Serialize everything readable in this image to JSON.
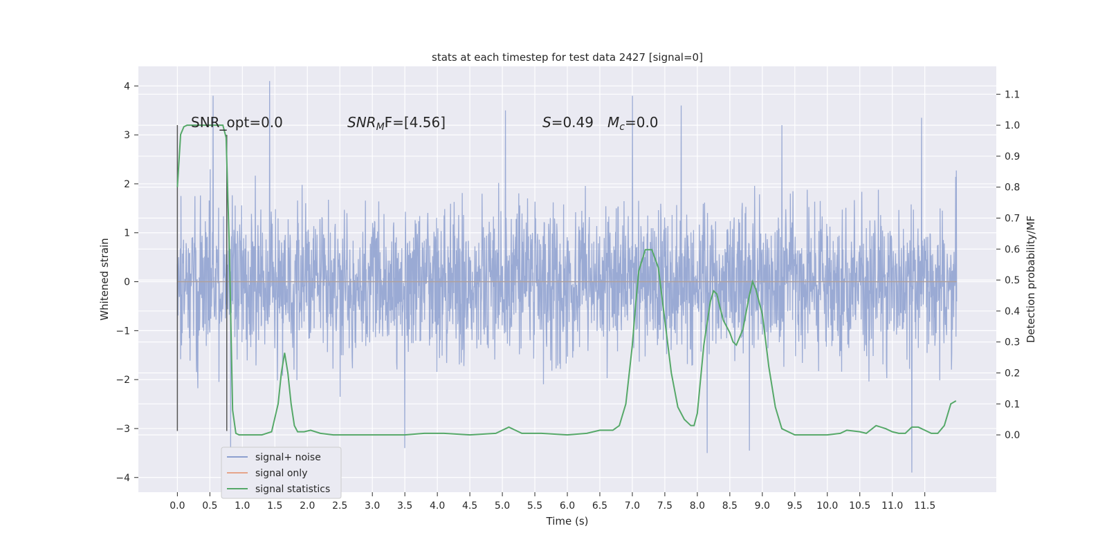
{
  "chart_data": {
    "type": "line",
    "title": "stats at each timestep for test data 2427 [signal=0]",
    "xlabel": "Time (s)",
    "ylabel": "Whitened strain",
    "y2label": "Detection probability/MF",
    "xlim": [
      -0.6,
      12.6
    ],
    "ylim": [
      -4.3,
      4.4
    ],
    "y2lim": [
      -0.185,
      1.19
    ],
    "x_ticks": [
      "0.0",
      "0.5",
      "1.0",
      "1.5",
      "2.0",
      "2.5",
      "3.0",
      "3.5",
      "4.0",
      "4.5",
      "5.0",
      "5.5",
      "6.0",
      "6.5",
      "7.0",
      "7.5",
      "8.0",
      "8.5",
      "9.0",
      "9.5",
      "10.0",
      "10.5",
      "11.0",
      "11.5"
    ],
    "y_ticks": [
      "−4",
      "−3",
      "−2",
      "−1",
      "0",
      "1",
      "2",
      "3",
      "4"
    ],
    "y2_ticks": [
      "0.0",
      "0.1",
      "0.2",
      "0.3",
      "0.4",
      "0.5",
      "0.6",
      "0.7",
      "0.8",
      "0.9",
      "1.0",
      "1.1"
    ],
    "grid": true,
    "legend_position": "bottom-left",
    "legend": [
      {
        "label": "signal+ noise",
        "color": "#8c9fcf"
      },
      {
        "label": "signal only",
        "color": "#e6a48a"
      },
      {
        "label": "signal statistics",
        "color": "#55a868"
      }
    ],
    "annotations": {
      "snr_opt": "SNR_opt=0.0",
      "snr_mf_sym": "SNR",
      "snr_mf_sub": "M",
      "snr_mf_rest": "F=[4.56]",
      "s_sym": "S",
      "s_val": "=0.49",
      "mc_sym": "M",
      "mc_sub": "c",
      "mc_val": "=0.0"
    },
    "noise_series": {
      "name": "signal+ noise",
      "x_range": [
        0.0,
        11.99
      ],
      "band": [
        -1.8,
        1.9
      ],
      "spikes": [
        [
          0.55,
          3.8
        ],
        [
          1.42,
          4.1
        ],
        [
          3.5,
          -3.4
        ],
        [
          5.05,
          3.5
        ],
        [
          7.0,
          3.8
        ],
        [
          7.75,
          3.6
        ],
        [
          8.15,
          -3.5
        ],
        [
          8.8,
          -3.45
        ],
        [
          9.3,
          3.2
        ],
        [
          11.3,
          -3.9
        ],
        [
          11.45,
          3.35
        ],
        [
          0.82,
          -3.4
        ]
      ]
    },
    "signal_only": {
      "name": "signal only",
      "value": 0.0
    },
    "window_markers": [
      {
        "x": 0.0,
        "y": [
          -3.05,
          3.2
        ]
      },
      {
        "x": 0.76,
        "y": [
          -3.05,
          3.0
        ]
      }
    ],
    "stats_series": {
      "name": "signal statistics",
      "x": [
        0.0,
        0.05,
        0.1,
        0.15,
        0.25,
        0.4,
        0.6,
        0.7,
        0.75,
        0.8,
        0.85,
        0.9,
        0.95,
        1.0,
        1.1,
        1.3,
        1.45,
        1.55,
        1.6,
        1.65,
        1.7,
        1.75,
        1.8,
        1.85,
        1.95,
        2.05,
        2.2,
        2.4,
        2.7,
        3.0,
        3.5,
        3.8,
        4.1,
        4.5,
        4.9,
        5.0,
        5.1,
        5.2,
        5.3,
        5.6,
        6.0,
        6.3,
        6.5,
        6.7,
        6.8,
        6.9,
        7.0,
        7.05,
        7.1,
        7.2,
        7.3,
        7.4,
        7.5,
        7.6,
        7.7,
        7.8,
        7.9,
        7.95,
        8.0,
        8.1,
        8.2,
        8.25,
        8.3,
        8.35,
        8.4,
        8.5,
        8.55,
        8.6,
        8.7,
        8.8,
        8.85,
        8.9,
        9.0,
        9.1,
        9.2,
        9.3,
        9.5,
        9.8,
        10.0,
        10.2,
        10.3,
        10.5,
        10.6,
        10.75,
        10.9,
        11.0,
        11.1,
        11.2,
        11.3,
        11.4,
        11.5,
        11.6,
        11.7,
        11.8,
        11.9,
        11.98
      ],
      "y": [
        0.8,
        0.97,
        0.995,
        1.0,
        1.0,
        1.0,
        1.0,
        1.0,
        0.96,
        0.6,
        0.08,
        0.005,
        0.0,
        0.0,
        0.0,
        0.0,
        0.01,
        0.1,
        0.2,
        0.265,
        0.2,
        0.1,
        0.03,
        0.01,
        0.01,
        0.015,
        0.005,
        0.0,
        0.0,
        0.0,
        0.0,
        0.005,
        0.005,
        0.0,
        0.005,
        0.015,
        0.025,
        0.015,
        0.005,
        0.005,
        0.0,
        0.005,
        0.015,
        0.015,
        0.03,
        0.1,
        0.29,
        0.42,
        0.53,
        0.598,
        0.598,
        0.54,
        0.37,
        0.2,
        0.09,
        0.05,
        0.03,
        0.03,
        0.07,
        0.29,
        0.43,
        0.465,
        0.455,
        0.41,
        0.37,
        0.33,
        0.3,
        0.29,
        0.34,
        0.45,
        0.495,
        0.47,
        0.39,
        0.22,
        0.09,
        0.02,
        0.0,
        0.0,
        0.0,
        0.005,
        0.015,
        0.01,
        0.005,
        0.03,
        0.02,
        0.01,
        0.005,
        0.005,
        0.025,
        0.025,
        0.015,
        0.005,
        0.005,
        0.03,
        0.1,
        0.11
      ]
    }
  }
}
